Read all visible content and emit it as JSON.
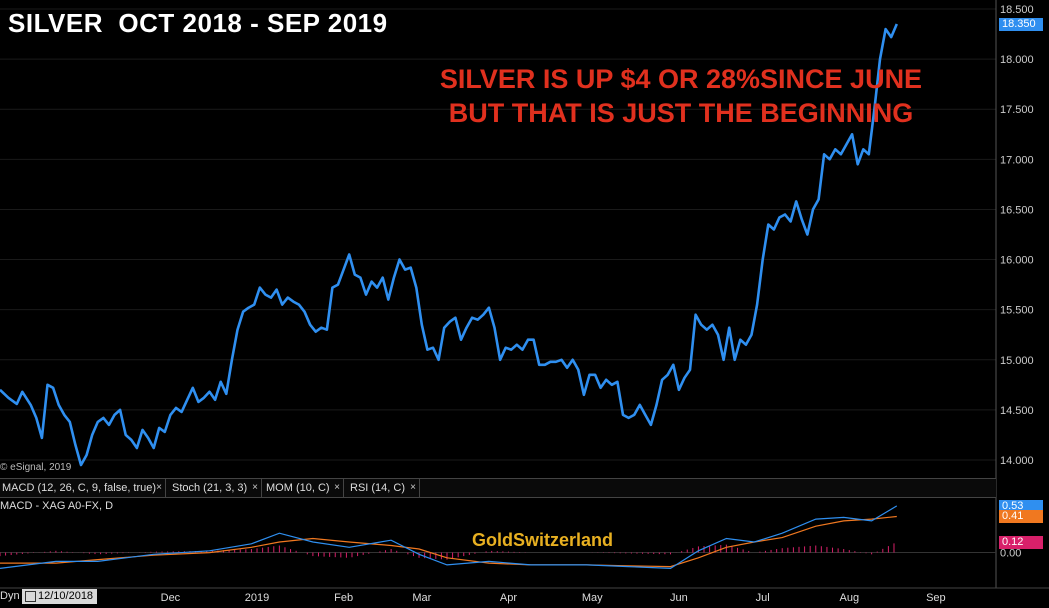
{
  "header": {
    "title": "SILVER  OCT 2018 - SEP 2019",
    "annotation_line1": "SILVER IS UP $4 OR 28%SINCE JUNE",
    "annotation_line2": "BUT THAT IS JUST THE BEGINNING"
  },
  "copyright": "© eSignal, 2019",
  "watermark": "GoldSwitzerland",
  "indicator_tabs": [
    {
      "label": "MACD (12, 26, C, 9, false, true)"
    },
    {
      "label": "Stoch (21, 3, 3)"
    },
    {
      "label": "MOM (10, C)"
    },
    {
      "label": "RSI (14, C)"
    }
  ],
  "tab_close_symbol": "×",
  "indicator_label": "MACD - XAG A0-FX, D",
  "colors": {
    "price_line": "#2f8ff0",
    "macd_line": "#2f8ff0",
    "signal_line": "#f07820",
    "histogram": "#d8206a",
    "annotation": "#e0301e",
    "watermark": "#e8b021"
  },
  "bottom": {
    "dyn_label": "Dyn",
    "date_value": "12/10/2018"
  },
  "chart_data": [
    {
      "type": "line",
      "title": "SILVER  OCT 2018 - SEP 2019",
      "ylim": [
        13.9,
        18.55
      ],
      "y_ticks": [
        "14.000",
        "14.500",
        "15.000",
        "15.500",
        "16.000",
        "16.500",
        "17.000",
        "17.500",
        "18.000",
        "18.500"
      ],
      "y_tick_values": [
        14.0,
        14.5,
        15.0,
        15.5,
        16.0,
        16.5,
        17.0,
        17.5,
        18.0,
        18.5
      ],
      "last_value_label": "18.350",
      "last_value": 18.35,
      "x_labels": [
        {
          "label": "Dec",
          "day": 61
        },
        {
          "label": "2019",
          "day": 92
        },
        {
          "label": "Feb",
          "day": 123
        },
        {
          "label": "Mar",
          "day": 151
        },
        {
          "label": "Apr",
          "day": 182
        },
        {
          "label": "May",
          "day": 212
        },
        {
          "label": "Jun",
          "day": 243
        },
        {
          "label": "Jul",
          "day": 273
        },
        {
          "label": "Aug",
          "day": 304
        },
        {
          "label": "Sep",
          "day": 335
        }
      ],
      "x_range": [
        0,
        349
      ],
      "series": [
        {
          "values": [
            [
              0,
              14.7
            ],
            [
              3,
              14.62
            ],
            [
              6,
              14.56
            ],
            [
              8,
              14.68
            ],
            [
              11,
              14.55
            ],
            [
              13,
              14.42
            ],
            [
              15,
              14.22
            ],
            [
              17,
              14.75
            ],
            [
              19,
              14.72
            ],
            [
              21,
              14.55
            ],
            [
              23,
              14.45
            ],
            [
              25,
              14.38
            ],
            [
              27,
              14.15
            ],
            [
              29,
              13.95
            ],
            [
              31,
              14.05
            ],
            [
              33,
              14.25
            ],
            [
              35,
              14.38
            ],
            [
              37,
              14.42
            ],
            [
              39,
              14.35
            ],
            [
              41,
              14.45
            ],
            [
              43,
              14.5
            ],
            [
              45,
              14.25
            ],
            [
              47,
              14.2
            ],
            [
              49,
              14.12
            ],
            [
              51,
              14.3
            ],
            [
              53,
              14.22
            ],
            [
              55,
              14.12
            ],
            [
              57,
              14.32
            ],
            [
              59,
              14.28
            ],
            [
              61,
              14.45
            ],
            [
              63,
              14.52
            ],
            [
              65,
              14.48
            ],
            [
              67,
              14.6
            ],
            [
              69,
              14.72
            ],
            [
              71,
              14.58
            ],
            [
              73,
              14.62
            ],
            [
              75,
              14.68
            ],
            [
              77,
              14.6
            ],
            [
              79,
              14.78
            ],
            [
              81,
              14.66
            ],
            [
              83,
              15.0
            ],
            [
              85,
              15.3
            ],
            [
              87,
              15.48
            ],
            [
              89,
              15.52
            ],
            [
              91,
              15.55
            ],
            [
              93,
              15.72
            ],
            [
              95,
              15.65
            ],
            [
              97,
              15.62
            ],
            [
              99,
              15.7
            ],
            [
              101,
              15.55
            ],
            [
              103,
              15.62
            ],
            [
              105,
              15.58
            ],
            [
              107,
              15.55
            ],
            [
              109,
              15.48
            ],
            [
              111,
              15.35
            ],
            [
              113,
              15.28
            ],
            [
              115,
              15.32
            ],
            [
              117,
              15.3
            ],
            [
              119,
              15.72
            ],
            [
              121,
              15.75
            ],
            [
              123,
              15.9
            ],
            [
              125,
              16.05
            ],
            [
              127,
              15.85
            ],
            [
              129,
              15.82
            ],
            [
              131,
              15.65
            ],
            [
              133,
              15.78
            ],
            [
              135,
              15.72
            ],
            [
              137,
              15.82
            ],
            [
              139,
              15.6
            ],
            [
              141,
              15.82
            ],
            [
              143,
              16.0
            ],
            [
              145,
              15.9
            ],
            [
              147,
              15.92
            ],
            [
              149,
              15.72
            ],
            [
              151,
              15.35
            ],
            [
              153,
              15.1
            ],
            [
              155,
              15.12
            ],
            [
              157,
              15.0
            ],
            [
              159,
              15.32
            ],
            [
              161,
              15.38
            ],
            [
              163,
              15.42
            ],
            [
              165,
              15.2
            ],
            [
              167,
              15.32
            ],
            [
              169,
              15.42
            ],
            [
              171,
              15.4
            ],
            [
              173,
              15.45
            ],
            [
              175,
              15.52
            ],
            [
              177,
              15.32
            ],
            [
              179,
              15.0
            ],
            [
              181,
              15.12
            ],
            [
              183,
              15.1
            ],
            [
              185,
              15.15
            ],
            [
              187,
              15.1
            ],
            [
              189,
              15.2
            ],
            [
              191,
              15.2
            ],
            [
              193,
              14.95
            ],
            [
              195,
              14.95
            ],
            [
              197,
              14.98
            ],
            [
              199,
              14.98
            ],
            [
              201,
              15.0
            ],
            [
              203,
              14.92
            ],
            [
              205,
              15.0
            ],
            [
              207,
              14.9
            ],
            [
              209,
              14.65
            ],
            [
              211,
              14.85
            ],
            [
              213,
              14.85
            ],
            [
              215,
              14.72
            ],
            [
              217,
              14.8
            ],
            [
              219,
              14.75
            ],
            [
              221,
              14.78
            ],
            [
              223,
              14.45
            ],
            [
              225,
              14.42
            ],
            [
              227,
              14.45
            ],
            [
              229,
              14.55
            ],
            [
              231,
              14.45
            ],
            [
              233,
              14.35
            ],
            [
              235,
              14.55
            ],
            [
              237,
              14.8
            ],
            [
              239,
              14.85
            ],
            [
              241,
              14.95
            ],
            [
              243,
              14.7
            ],
            [
              245,
              14.82
            ],
            [
              247,
              14.9
            ],
            [
              249,
              15.45
            ],
            [
              251,
              15.35
            ],
            [
              253,
              15.3
            ],
            [
              255,
              15.35
            ],
            [
              257,
              15.25
            ],
            [
              259,
              15.0
            ],
            [
              261,
              15.32
            ],
            [
              263,
              15.0
            ],
            [
              265,
              15.2
            ],
            [
              267,
              15.15
            ],
            [
              269,
              15.25
            ],
            [
              271,
              15.55
            ],
            [
              273,
              16.0
            ],
            [
              275,
              16.35
            ],
            [
              277,
              16.3
            ],
            [
              279,
              16.42
            ],
            [
              281,
              16.45
            ],
            [
              283,
              16.38
            ],
            [
              285,
              16.58
            ],
            [
              287,
              16.4
            ],
            [
              289,
              16.25
            ],
            [
              291,
              16.5
            ],
            [
              293,
              16.6
            ],
            [
              295,
              17.05
            ],
            [
              297,
              17.0
            ],
            [
              299,
              17.1
            ],
            [
              301,
              17.05
            ],
            [
              303,
              17.15
            ],
            [
              305,
              17.25
            ],
            [
              307,
              16.95
            ],
            [
              309,
              17.1
            ],
            [
              311,
              17.05
            ],
            [
              313,
              17.5
            ],
            [
              315,
              18.0
            ],
            [
              317,
              18.3
            ],
            [
              319,
              18.22
            ],
            [
              321,
              18.35
            ]
          ]
        }
      ]
    },
    {
      "type": "line",
      "title": "",
      "ylim": [
        -0.38,
        0.62
      ],
      "y_ticks": [
        "0.00"
      ],
      "y_tick_values": [
        0.0
      ],
      "value_badges": [
        {
          "label": "0.53",
          "value": 0.53,
          "color": "#2f8ff0"
        },
        {
          "label": "0.41",
          "value": 0.41,
          "color": "#f07820"
        },
        {
          "label": "0.12",
          "value": 0.12,
          "color": "#d8206a"
        }
      ],
      "series": [
        {
          "name": "MACD",
          "values": [
            [
              0,
              -0.18
            ],
            [
              20,
              -0.1
            ],
            [
              35,
              -0.1
            ],
            [
              55,
              -0.02
            ],
            [
              75,
              0.02
            ],
            [
              90,
              0.1
            ],
            [
              100,
              0.22
            ],
            [
              112,
              0.12
            ],
            [
              125,
              0.06
            ],
            [
              140,
              0.14
            ],
            [
              150,
              -0.02
            ],
            [
              160,
              -0.14
            ],
            [
              175,
              -0.1
            ],
            [
              190,
              -0.14
            ],
            [
              210,
              -0.14
            ],
            [
              225,
              -0.16
            ],
            [
              240,
              -0.18
            ],
            [
              250,
              0.02
            ],
            [
              260,
              0.16
            ],
            [
              270,
              0.12
            ],
            [
              280,
              0.22
            ],
            [
              292,
              0.38
            ],
            [
              302,
              0.4
            ],
            [
              312,
              0.36
            ],
            [
              321,
              0.53
            ]
          ]
        },
        {
          "name": "Signal",
          "values": [
            [
              0,
              -0.12
            ],
            [
              20,
              -0.12
            ],
            [
              35,
              -0.08
            ],
            [
              55,
              -0.03
            ],
            [
              75,
              0.0
            ],
            [
              90,
              0.06
            ],
            [
              100,
              0.12
            ],
            [
              112,
              0.16
            ],
            [
              125,
              0.12
            ],
            [
              140,
              0.08
            ],
            [
              150,
              0.04
            ],
            [
              160,
              -0.06
            ],
            [
              175,
              -0.12
            ],
            [
              190,
              -0.14
            ],
            [
              210,
              -0.14
            ],
            [
              225,
              -0.15
            ],
            [
              240,
              -0.16
            ],
            [
              250,
              -0.06
            ],
            [
              260,
              0.06
            ],
            [
              270,
              0.12
            ],
            [
              280,
              0.17
            ],
            [
              292,
              0.3
            ],
            [
              302,
              0.36
            ],
            [
              312,
              0.38
            ],
            [
              321,
              0.41
            ]
          ]
        },
        {
          "name": "Histogram",
          "values": [
            [
              0,
              -0.04
            ],
            [
              20,
              0.02
            ],
            [
              35,
              -0.02
            ],
            [
              55,
              0.01
            ],
            [
              75,
              0.02
            ],
            [
              90,
              0.04
            ],
            [
              100,
              0.08
            ],
            [
              112,
              -0.04
            ],
            [
              125,
              -0.06
            ],
            [
              140,
              0.04
            ],
            [
              150,
              -0.06
            ],
            [
              160,
              -0.08
            ],
            [
              175,
              0.02
            ],
            [
              190,
              0.0
            ],
            [
              210,
              0.0
            ],
            [
              225,
              -0.01
            ],
            [
              240,
              -0.02
            ],
            [
              250,
              0.07
            ],
            [
              260,
              0.09
            ],
            [
              270,
              0.0
            ],
            [
              280,
              0.05
            ],
            [
              292,
              0.08
            ],
            [
              302,
              0.04
            ],
            [
              312,
              -0.02
            ],
            [
              321,
              0.12
            ]
          ]
        }
      ]
    }
  ]
}
